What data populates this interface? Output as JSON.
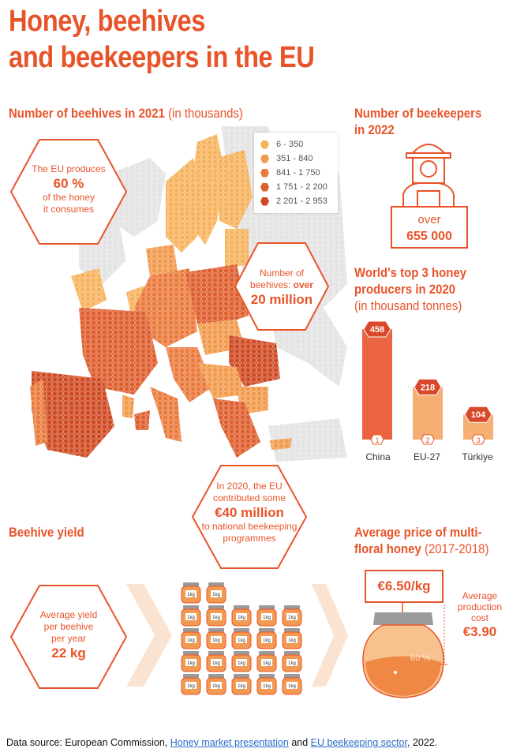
{
  "title": {
    "line1": "Honey, beehives",
    "line2": "and beekeepers in the EU"
  },
  "map_section": {
    "heading": "Number of beehives in 2021",
    "heading_note": "(in thousands)",
    "legend": [
      {
        "label": "6 - 350",
        "color": "#f7b25c"
      },
      {
        "label": "351 - 840",
        "color": "#f29a4c"
      },
      {
        "label": "841 - 1 750",
        "color": "#ea7a3c"
      },
      {
        "label": "1 751 - 2 200",
        "color": "#df5e2e"
      },
      {
        "label": "2 201 - 2 953",
        "color": "#cf4a22"
      }
    ]
  },
  "honey_share": {
    "line1": "The EU produces",
    "value": "60 %",
    "line3": "of the honey",
    "line4": "it consumes"
  },
  "beehives_total": {
    "line1": "Number of",
    "line2a": "beehives:",
    "line2b": "over",
    "value": "20 million"
  },
  "beekeepers": {
    "heading1": "Number of beekeepers",
    "heading2": "in 2022",
    "line1": "over",
    "value": "655 000"
  },
  "producers": {
    "heading1": "World's top 3 honey",
    "heading2": "producers in 2020",
    "note": "(in thousand tonnes)",
    "bars": [
      {
        "rank": "1",
        "name": "China",
        "value": "458",
        "num": 458
      },
      {
        "rank": "2",
        "name": "EU-27",
        "value": "218",
        "num": 218
      },
      {
        "rank": "3",
        "name": "Türkiye",
        "value": "104",
        "num": 104
      }
    ]
  },
  "funding": {
    "line1": "In 2020, the EU",
    "line2": "contributed some",
    "value": "€40 million",
    "line4": "to national beekeeping",
    "line5": "programmes"
  },
  "yield": {
    "heading": "Beehive yield",
    "line1": "Average yield",
    "line2": "per beehive",
    "line3": "per year",
    "value": "22 kg",
    "jar_label": "1kg",
    "jars": 22
  },
  "price": {
    "heading1": "Average price of multi-",
    "heading2": "floral honey",
    "heading_note": "(2017-2018)",
    "price_value": "€6.50/kg",
    "cost_line1": "Average",
    "cost_line2": "production",
    "cost_line3": "cost",
    "cost_value": "€3.90",
    "share": "60 %"
  },
  "source": {
    "prefix": "Data source: European Commission,",
    "link1": "Honey market presentation",
    "middle": "and",
    "link2": "EU beekeeping sector",
    "suffix": ", 2022."
  }
}
